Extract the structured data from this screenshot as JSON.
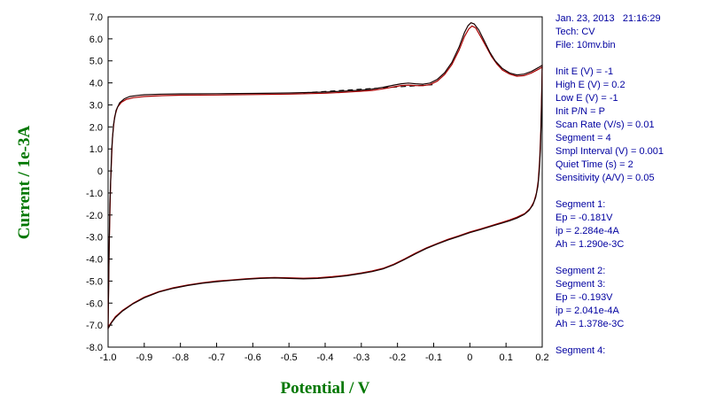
{
  "chart": {
    "ylabel": "Current / 1e-3A",
    "xlabel": "Potential / V",
    "axis_title_color": "#007700",
    "x_ticks": [
      "-1.0",
      "-0.9",
      "-0.8",
      "-0.7",
      "-0.6",
      "-0.5",
      "-0.4",
      "-0.3",
      "-0.2",
      "-0.1",
      "0",
      "0.1",
      "0.2"
    ],
    "y_ticks": [
      "7.0",
      "6.0",
      "5.0",
      "4.0",
      "3.0",
      "2.0",
      "1.0",
      "0",
      "-1.0",
      "-2.0",
      "-3.0",
      "-4.0",
      "-5.0",
      "-6.0",
      "-7.0",
      "-8.0"
    ]
  },
  "chart_data": {
    "type": "line",
    "title": "",
    "xlabel": "Potential / V",
    "ylabel": "Current / 1e-3A",
    "xlim": [
      -1.0,
      0.2
    ],
    "ylim": [
      -8.0,
      7.0
    ],
    "grid": false,
    "legend": false,
    "series": [
      {
        "name": "peak-baseline-dashed",
        "color": "#000000",
        "dashed": true,
        "points": [
          [
            -0.46,
            3.55
          ],
          [
            -0.1,
            3.92
          ]
        ]
      },
      {
        "name": "cv-cycle-2-red",
        "color": "#aa0000",
        "dashed": false,
        "points": [
          [
            -1.0,
            -7.1
          ],
          [
            -0.997,
            -3.5
          ],
          [
            -0.993,
            -0.5
          ],
          [
            -0.988,
            1.5
          ],
          [
            -0.982,
            2.45
          ],
          [
            -0.974,
            2.9
          ],
          [
            -0.963,
            3.12
          ],
          [
            -0.95,
            3.25
          ],
          [
            -0.93,
            3.33
          ],
          [
            -0.9,
            3.38
          ],
          [
            -0.85,
            3.42
          ],
          [
            -0.8,
            3.44
          ],
          [
            -0.7,
            3.45
          ],
          [
            -0.6,
            3.47
          ],
          [
            -0.5,
            3.49
          ],
          [
            -0.45,
            3.51
          ],
          [
            -0.4,
            3.53
          ],
          [
            -0.35,
            3.57
          ],
          [
            -0.3,
            3.62
          ],
          [
            -0.27,
            3.66
          ],
          [
            -0.24,
            3.73
          ],
          [
            -0.21,
            3.82
          ],
          [
            -0.19,
            3.88
          ],
          [
            -0.17,
            3.9
          ],
          [
            -0.15,
            3.88
          ],
          [
            -0.13,
            3.87
          ],
          [
            -0.11,
            3.92
          ],
          [
            -0.09,
            4.08
          ],
          [
            -0.07,
            4.38
          ],
          [
            -0.05,
            4.82
          ],
          [
            -0.03,
            5.48
          ],
          [
            -0.015,
            6.1
          ],
          [
            -0.003,
            6.45
          ],
          [
            0.006,
            6.58
          ],
          [
            0.016,
            6.5
          ],
          [
            0.03,
            6.1
          ],
          [
            0.045,
            5.65
          ],
          [
            0.06,
            5.2
          ],
          [
            0.075,
            4.85
          ],
          [
            0.09,
            4.58
          ],
          [
            0.11,
            4.4
          ],
          [
            0.13,
            4.3
          ],
          [
            0.15,
            4.33
          ],
          [
            0.17,
            4.45
          ],
          [
            0.19,
            4.62
          ],
          [
            0.2,
            4.72
          ],
          [
            0.198,
            3.2
          ],
          [
            0.196,
            1.8
          ],
          [
            0.193,
            0.5
          ],
          [
            0.189,
            -0.45
          ],
          [
            0.184,
            -1.0
          ],
          [
            0.177,
            -1.4
          ],
          [
            0.167,
            -1.7
          ],
          [
            0.152,
            -1.93
          ],
          [
            0.13,
            -2.1
          ],
          [
            0.11,
            -2.22
          ],
          [
            0.09,
            -2.33
          ],
          [
            0.07,
            -2.43
          ],
          [
            0.05,
            -2.53
          ],
          [
            0.03,
            -2.63
          ],
          [
            0.0,
            -2.77
          ],
          [
            -0.03,
            -2.94
          ],
          [
            -0.06,
            -3.1
          ],
          [
            -0.09,
            -3.29
          ],
          [
            -0.12,
            -3.49
          ],
          [
            -0.15,
            -3.73
          ],
          [
            -0.18,
            -3.99
          ],
          [
            -0.21,
            -4.23
          ],
          [
            -0.24,
            -4.42
          ],
          [
            -0.27,
            -4.54
          ],
          [
            -0.3,
            -4.63
          ],
          [
            -0.34,
            -4.73
          ],
          [
            -0.38,
            -4.8
          ],
          [
            -0.42,
            -4.85
          ],
          [
            -0.46,
            -4.87
          ],
          [
            -0.5,
            -4.85
          ],
          [
            -0.54,
            -4.84
          ],
          [
            -0.58,
            -4.86
          ],
          [
            -0.62,
            -4.9
          ],
          [
            -0.66,
            -4.95
          ],
          [
            -0.7,
            -5.0
          ],
          [
            -0.74,
            -5.08
          ],
          [
            -0.78,
            -5.18
          ],
          [
            -0.82,
            -5.3
          ],
          [
            -0.86,
            -5.48
          ],
          [
            -0.9,
            -5.73
          ],
          [
            -0.93,
            -6.0
          ],
          [
            -0.96,
            -6.33
          ],
          [
            -0.98,
            -6.62
          ],
          [
            -0.99,
            -6.85
          ],
          [
            -1.0,
            -7.1
          ]
        ]
      },
      {
        "name": "cv-cycle-1-black",
        "color": "#1a0000",
        "dashed": false,
        "points": [
          [
            -1.0,
            -7.2
          ],
          [
            -0.998,
            -4.5
          ],
          [
            -0.995,
            -1.5
          ],
          [
            -0.99,
            1.0
          ],
          [
            -0.985,
            2.1
          ],
          [
            -0.978,
            2.75
          ],
          [
            -0.968,
            3.1
          ],
          [
            -0.955,
            3.28
          ],
          [
            -0.94,
            3.38
          ],
          [
            -0.92,
            3.43
          ],
          [
            -0.9,
            3.46
          ],
          [
            -0.85,
            3.49
          ],
          [
            -0.8,
            3.5
          ],
          [
            -0.7,
            3.51
          ],
          [
            -0.6,
            3.52
          ],
          [
            -0.5,
            3.54
          ],
          [
            -0.45,
            3.56
          ],
          [
            -0.4,
            3.58
          ],
          [
            -0.35,
            3.62
          ],
          [
            -0.3,
            3.67
          ],
          [
            -0.27,
            3.72
          ],
          [
            -0.24,
            3.8
          ],
          [
            -0.21,
            3.9
          ],
          [
            -0.19,
            3.96
          ],
          [
            -0.17,
            3.99
          ],
          [
            -0.15,
            3.96
          ],
          [
            -0.13,
            3.94
          ],
          [
            -0.11,
            3.99
          ],
          [
            -0.09,
            4.16
          ],
          [
            -0.07,
            4.46
          ],
          [
            -0.05,
            4.92
          ],
          [
            -0.03,
            5.62
          ],
          [
            -0.015,
            6.28
          ],
          [
            -0.005,
            6.6
          ],
          [
            0.003,
            6.73
          ],
          [
            0.012,
            6.68
          ],
          [
            0.025,
            6.4
          ],
          [
            0.04,
            5.9
          ],
          [
            0.055,
            5.4
          ],
          [
            0.07,
            5.0
          ],
          [
            0.09,
            4.65
          ],
          [
            0.11,
            4.45
          ],
          [
            0.13,
            4.36
          ],
          [
            0.15,
            4.4
          ],
          [
            0.17,
            4.52
          ],
          [
            0.19,
            4.7
          ],
          [
            0.2,
            4.8
          ],
          [
            0.199,
            3.6
          ],
          [
            0.197,
            2.2
          ],
          [
            0.195,
            1.0
          ],
          [
            0.192,
            0.0
          ],
          [
            0.188,
            -0.7
          ],
          [
            0.182,
            -1.2
          ],
          [
            0.174,
            -1.55
          ],
          [
            0.163,
            -1.8
          ],
          [
            0.15,
            -1.98
          ],
          [
            0.13,
            -2.14
          ],
          [
            0.11,
            -2.26
          ],
          [
            0.09,
            -2.36
          ],
          [
            0.07,
            -2.46
          ],
          [
            0.05,
            -2.56
          ],
          [
            0.03,
            -2.66
          ],
          [
            0.0,
            -2.8
          ],
          [
            -0.03,
            -2.97
          ],
          [
            -0.06,
            -3.13
          ],
          [
            -0.09,
            -3.32
          ],
          [
            -0.12,
            -3.52
          ],
          [
            -0.15,
            -3.76
          ],
          [
            -0.18,
            -4.02
          ],
          [
            -0.21,
            -4.26
          ],
          [
            -0.24,
            -4.45
          ],
          [
            -0.27,
            -4.57
          ],
          [
            -0.3,
            -4.66
          ],
          [
            -0.34,
            -4.76
          ],
          [
            -0.38,
            -4.83
          ],
          [
            -0.42,
            -4.88
          ],
          [
            -0.46,
            -4.9
          ],
          [
            -0.5,
            -4.88
          ],
          [
            -0.54,
            -4.86
          ],
          [
            -0.58,
            -4.88
          ],
          [
            -0.62,
            -4.92
          ],
          [
            -0.66,
            -4.97
          ],
          [
            -0.7,
            -5.03
          ],
          [
            -0.74,
            -5.1
          ],
          [
            -0.78,
            -5.2
          ],
          [
            -0.82,
            -5.33
          ],
          [
            -0.86,
            -5.5
          ],
          [
            -0.9,
            -5.76
          ],
          [
            -0.93,
            -6.02
          ],
          [
            -0.96,
            -6.36
          ],
          [
            -0.98,
            -6.66
          ],
          [
            -0.99,
            -6.88
          ],
          [
            -1.0,
            -7.15
          ]
        ]
      }
    ]
  },
  "info_panel": {
    "text_color": "#0000a0",
    "groups": [
      [
        "Jan. 23, 2013   21:16:29",
        "Tech: CV",
        "File: 10mv.bin"
      ],
      [
        "Init E (V) = -1",
        "High E (V) = 0.2",
        "Low E (V) = -1",
        "Init P/N = P",
        "Scan Rate (V/s) = 0.01",
        "Segment = 4",
        "Smpl Interval (V) = 0.001",
        "Quiet Time (s) = 2",
        "Sensitivity (A/V) = 0.05"
      ],
      [
        "Segment 1:",
        "Ep = -0.181V",
        "ip = 2.284e-4A",
        "Ah = 1.290e-3C"
      ],
      [
        "Segment 2:",
        "Segment 3:",
        "Ep = -0.193V",
        "ip = 2.041e-4A",
        "Ah = 1.378e-3C"
      ],
      [
        "Segment 4:"
      ]
    ]
  }
}
